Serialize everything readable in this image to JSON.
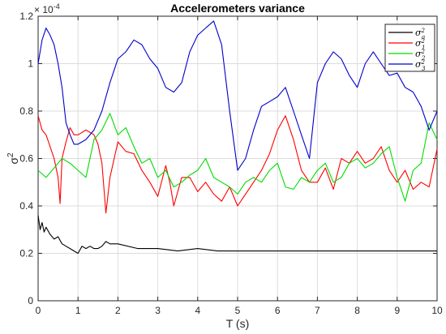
{
  "chart_data": {
    "type": "line",
    "title": "Accelerometers variance",
    "xlabel": "T (s)",
    "ylabel": "σ",
    "ylabel_sup": "2",
    "y_exponent_base": "× 10",
    "y_exponent_power": "-4",
    "xlim": [
      0,
      10
    ],
    "ylim": [
      0,
      1.2
    ],
    "x_ticks": [
      "0",
      "1",
      "2",
      "3",
      "4",
      "5",
      "6",
      "7",
      "8",
      "9",
      "10"
    ],
    "y_ticks": [
      "0",
      "0.2",
      "0.4",
      "0.6",
      "0.8",
      "1",
      "1.2"
    ],
    "grid": true,
    "legend_position": "top-right",
    "series": [
      {
        "name": "σ",
        "sub": "a",
        "color": "#000000",
        "x": [
          0,
          0.05,
          0.1,
          0.15,
          0.2,
          0.3,
          0.4,
          0.5,
          0.6,
          0.7,
          0.8,
          0.9,
          1.0,
          1.1,
          1.2,
          1.3,
          1.4,
          1.5,
          1.6,
          1.7,
          1.8,
          2.0,
          2.5,
          3.0,
          3.5,
          4.0,
          4.5,
          5.0,
          5.5,
          6.0,
          6.5,
          7.0,
          7.5,
          8.0,
          8.5,
          9.0,
          9.5,
          10.0
        ],
        "values": [
          0.36,
          0.3,
          0.33,
          0.29,
          0.31,
          0.28,
          0.26,
          0.27,
          0.24,
          0.23,
          0.22,
          0.21,
          0.2,
          0.23,
          0.22,
          0.23,
          0.22,
          0.22,
          0.23,
          0.25,
          0.24,
          0.24,
          0.22,
          0.22,
          0.21,
          0.22,
          0.21,
          0.21,
          0.21,
          0.21,
          0.21,
          0.21,
          0.21,
          0.21,
          0.21,
          0.21,
          0.21,
          0.21
        ]
      },
      {
        "name": "σ",
        "sub": "1",
        "color": "#ff0000",
        "x": [
          0,
          0.1,
          0.2,
          0.3,
          0.4,
          0.5,
          0.55,
          0.6,
          0.7,
          0.8,
          0.9,
          1.0,
          1.2,
          1.4,
          1.5,
          1.6,
          1.7,
          1.8,
          2.0,
          2.2,
          2.4,
          2.6,
          2.8,
          3.0,
          3.2,
          3.3,
          3.4,
          3.6,
          3.8,
          4.0,
          4.2,
          4.4,
          4.6,
          4.8,
          5.0,
          5.2,
          5.4,
          5.6,
          5.8,
          6.0,
          6.2,
          6.4,
          6.6,
          6.8,
          7.0,
          7.2,
          7.4,
          7.6,
          7.8,
          8.0,
          8.2,
          8.4,
          8.6,
          8.8,
          9.0,
          9.2,
          9.4,
          9.6,
          9.8,
          10.0
        ],
        "values": [
          0.78,
          0.72,
          0.7,
          0.65,
          0.6,
          0.52,
          0.41,
          0.6,
          0.67,
          0.73,
          0.7,
          0.7,
          0.72,
          0.7,
          0.66,
          0.58,
          0.37,
          0.52,
          0.67,
          0.63,
          0.62,
          0.55,
          0.5,
          0.44,
          0.57,
          0.5,
          0.4,
          0.52,
          0.52,
          0.46,
          0.5,
          0.45,
          0.42,
          0.48,
          0.4,
          0.45,
          0.5,
          0.55,
          0.62,
          0.72,
          0.78,
          0.68,
          0.55,
          0.5,
          0.5,
          0.56,
          0.47,
          0.6,
          0.58,
          0.63,
          0.58,
          0.6,
          0.65,
          0.55,
          0.5,
          0.55,
          0.47,
          0.5,
          0.48,
          0.64
        ]
      },
      {
        "name": "σ",
        "sub": "2",
        "color": "#00dd00",
        "x": [
          0,
          0.2,
          0.4,
          0.6,
          0.8,
          1.0,
          1.2,
          1.4,
          1.6,
          1.8,
          2.0,
          2.2,
          2.4,
          2.6,
          2.8,
          3.0,
          3.2,
          3.4,
          3.6,
          3.8,
          4.0,
          4.2,
          4.4,
          4.6,
          4.8,
          5.0,
          5.2,
          5.4,
          5.6,
          5.8,
          6.0,
          6.2,
          6.4,
          6.6,
          6.8,
          7.0,
          7.2,
          7.4,
          7.6,
          7.8,
          8.0,
          8.2,
          8.4,
          8.6,
          8.8,
          9.0,
          9.2,
          9.4,
          9.6,
          9.8,
          10.0
        ],
        "values": [
          0.55,
          0.52,
          0.56,
          0.6,
          0.58,
          0.55,
          0.52,
          0.68,
          0.72,
          0.79,
          0.7,
          0.73,
          0.65,
          0.58,
          0.6,
          0.52,
          0.55,
          0.48,
          0.5,
          0.53,
          0.55,
          0.6,
          0.52,
          0.5,
          0.48,
          0.45,
          0.5,
          0.52,
          0.5,
          0.55,
          0.58,
          0.48,
          0.47,
          0.52,
          0.5,
          0.55,
          0.58,
          0.5,
          0.52,
          0.58,
          0.6,
          0.56,
          0.58,
          0.62,
          0.65,
          0.52,
          0.42,
          0.55,
          0.58,
          0.75,
          0.68
        ]
      },
      {
        "name": "σ",
        "sub": "3",
        "color": "#0000cc",
        "x": [
          0,
          0.1,
          0.2,
          0.3,
          0.4,
          0.5,
          0.6,
          0.7,
          0.8,
          0.9,
          1.0,
          1.2,
          1.4,
          1.6,
          1.8,
          2.0,
          2.2,
          2.4,
          2.6,
          2.8,
          3.0,
          3.2,
          3.4,
          3.6,
          3.8,
          4.0,
          4.2,
          4.4,
          4.6,
          4.8,
          5.0,
          5.2,
          5.4,
          5.6,
          5.8,
          6.0,
          6.2,
          6.4,
          6.6,
          6.8,
          7.0,
          7.2,
          7.4,
          7.6,
          7.8,
          8.0,
          8.2,
          8.4,
          8.6,
          8.8,
          9.0,
          9.2,
          9.4,
          9.6,
          9.8,
          10.0
        ],
        "values": [
          1.0,
          1.1,
          1.15,
          1.12,
          1.08,
          1.0,
          0.9,
          0.75,
          0.7,
          0.66,
          0.66,
          0.68,
          0.72,
          0.8,
          0.92,
          1.02,
          1.05,
          1.1,
          1.08,
          1.02,
          0.98,
          0.9,
          0.88,
          0.92,
          1.05,
          1.12,
          1.15,
          1.18,
          1.08,
          0.8,
          0.55,
          0.6,
          0.72,
          0.82,
          0.84,
          0.86,
          0.9,
          0.8,
          0.7,
          0.6,
          0.92,
          1.0,
          1.05,
          1.02,
          0.95,
          0.9,
          1.0,
          1.05,
          1.0,
          0.95,
          0.96,
          0.9,
          0.88,
          0.82,
          0.72,
          0.8
        ]
      }
    ]
  }
}
